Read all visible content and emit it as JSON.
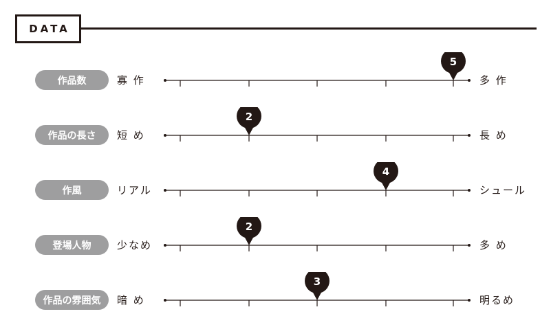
{
  "section_title": "DATA",
  "colors": {
    "ink": "#231815",
    "pill": "#9e9e9f",
    "pill_text": "#ffffff",
    "marker_text": "#ffffff"
  },
  "scale": {
    "min": 1,
    "max": 5
  },
  "rows": [
    {
      "category": "作品数",
      "left_label": "寡 作",
      "right_label": "多 作",
      "value": 5
    },
    {
      "category": "作品の長さ",
      "left_label": "短 め",
      "right_label": "長 め",
      "value": 2
    },
    {
      "category": "作風",
      "left_label": "リアル",
      "right_label": "シュール",
      "value": 4
    },
    {
      "category": "登場人物",
      "left_label": "少なめ",
      "right_label": "多 め",
      "value": 2
    },
    {
      "category": "作品の雰囲気",
      "left_label": "暗 め",
      "right_label": "明るめ",
      "value": 3
    }
  ]
}
